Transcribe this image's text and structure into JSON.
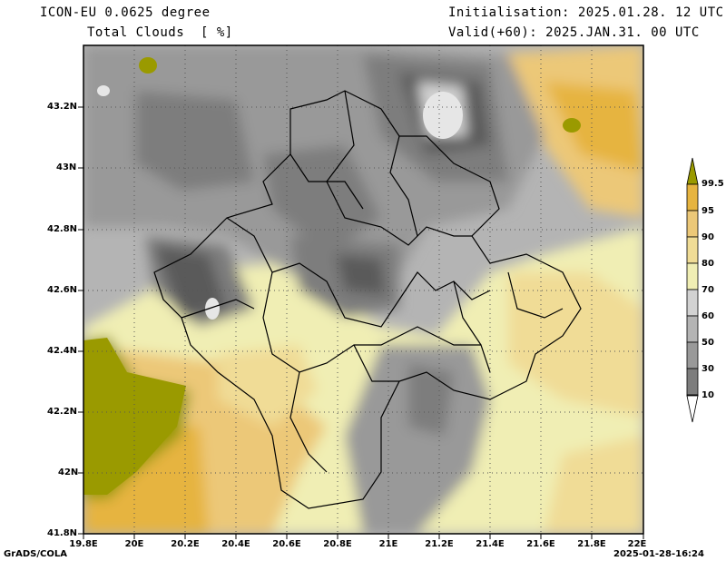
{
  "header": {
    "model": "ICON-EU 0.0625 degree",
    "field": "Total Clouds  [ %]",
    "init": "Initialisation: 2025.01.28. 12 UTC",
    "valid": "Valid(+60): 2025.JAN.31. 00 UTC"
  },
  "axes": {
    "lat_labels": [
      "43.2N",
      "43N",
      "42.8N",
      "42.6N",
      "42.4N",
      "42.2N",
      "42N",
      "41.8N"
    ],
    "lon_labels": [
      "19.8E",
      "20E",
      "20.2E",
      "20.4E",
      "20.6E",
      "20.8E",
      "21E",
      "21.2E",
      "21.4E",
      "21.6E",
      "21.8E",
      "22E"
    ]
  },
  "colorbar": {
    "levels": [
      "10",
      "30",
      "50",
      "60",
      "70",
      "80",
      "90",
      "95",
      "99.5"
    ],
    "colors": [
      "#ffffff",
      "#5a5a5a",
      "#7d7d7d",
      "#999999",
      "#b4b4b4",
      "#d2d2d2",
      "#f0eeb4",
      "#f0dc96",
      "#ecc878",
      "#e6b440",
      "#9a9a00"
    ]
  },
  "footer": {
    "left": "GrADS/COLA",
    "right": "2025-01-28-16:24"
  }
}
